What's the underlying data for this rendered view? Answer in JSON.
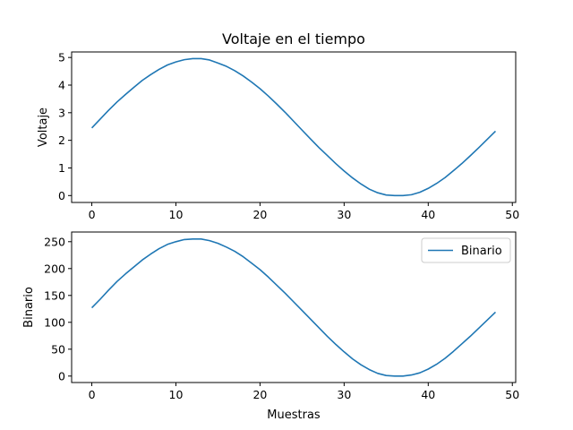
{
  "chart_data": [
    {
      "type": "line",
      "title": "Voltaje en el tiempo",
      "xlabel": "",
      "ylabel": "Voltaje",
      "xlim": [
        -2.4,
        50.4
      ],
      "ylim": [
        -0.25,
        5.2
      ],
      "xticks": [
        0,
        10,
        20,
        30,
        40,
        50
      ],
      "yticks": [
        0,
        1,
        2,
        3,
        4,
        5
      ],
      "grid": false,
      "legend": null,
      "series": [
        {
          "color": "#1f77b4",
          "x": [
            0,
            1,
            2,
            3,
            4,
            5,
            6,
            7,
            8,
            9,
            10,
            11,
            12,
            13,
            14,
            15,
            16,
            17,
            18,
            19,
            20,
            21,
            22,
            23,
            24,
            25,
            26,
            27,
            28,
            29,
            30,
            31,
            32,
            33,
            34,
            35,
            36,
            37,
            38,
            39,
            40,
            41,
            42,
            43,
            44,
            45,
            46,
            47,
            48
          ],
          "values": [
            2.45,
            2.77,
            3.09,
            3.39,
            3.66,
            3.92,
            4.17,
            4.38,
            4.57,
            4.73,
            4.84,
            4.92,
            4.96,
            4.96,
            4.91,
            4.8,
            4.68,
            4.52,
            4.33,
            4.11,
            3.87,
            3.6,
            3.31,
            3.01,
            2.69,
            2.37,
            2.05,
            1.74,
            1.45,
            1.16,
            0.89,
            0.64,
            0.42,
            0.23,
            0.1,
            0.02,
            0.0,
            0.0,
            0.03,
            0.12,
            0.26,
            0.44,
            0.65,
            0.9,
            1.16,
            1.44,
            1.73,
            2.03,
            2.33
          ]
        }
      ]
    },
    {
      "type": "line",
      "title": "",
      "xlabel": "Muestras",
      "ylabel": "Binario",
      "xlim": [
        -2.4,
        50.4
      ],
      "ylim": [
        -12,
        268
      ],
      "xticks": [
        0,
        10,
        20,
        30,
        40,
        50
      ],
      "yticks": [
        0,
        50,
        100,
        150,
        200,
        250
      ],
      "grid": false,
      "legend": "top-right",
      "series": [
        {
          "name": "Binario",
          "color": "#1f77b4",
          "x": [
            0,
            1,
            2,
            3,
            4,
            5,
            6,
            7,
            8,
            9,
            10,
            11,
            12,
            13,
            14,
            15,
            16,
            17,
            18,
            19,
            20,
            21,
            22,
            23,
            24,
            25,
            26,
            27,
            28,
            29,
            30,
            31,
            32,
            33,
            34,
            35,
            36,
            37,
            38,
            39,
            40,
            41,
            42,
            43,
            44,
            45,
            46,
            47,
            48
          ],
          "values": [
            127,
            143,
            160,
            176,
            190,
            203,
            216,
            227,
            237,
            245,
            250,
            254,
            255,
            255,
            252,
            247,
            240,
            232,
            222,
            210,
            198,
            184,
            169,
            154,
            138,
            122,
            106,
            90,
            74,
            59,
            45,
            32,
            21,
            12,
            5,
            1,
            0,
            0,
            2,
            6,
            13,
            22,
            33,
            46,
            60,
            74,
            89,
            104,
            119
          ]
        }
      ]
    }
  ]
}
